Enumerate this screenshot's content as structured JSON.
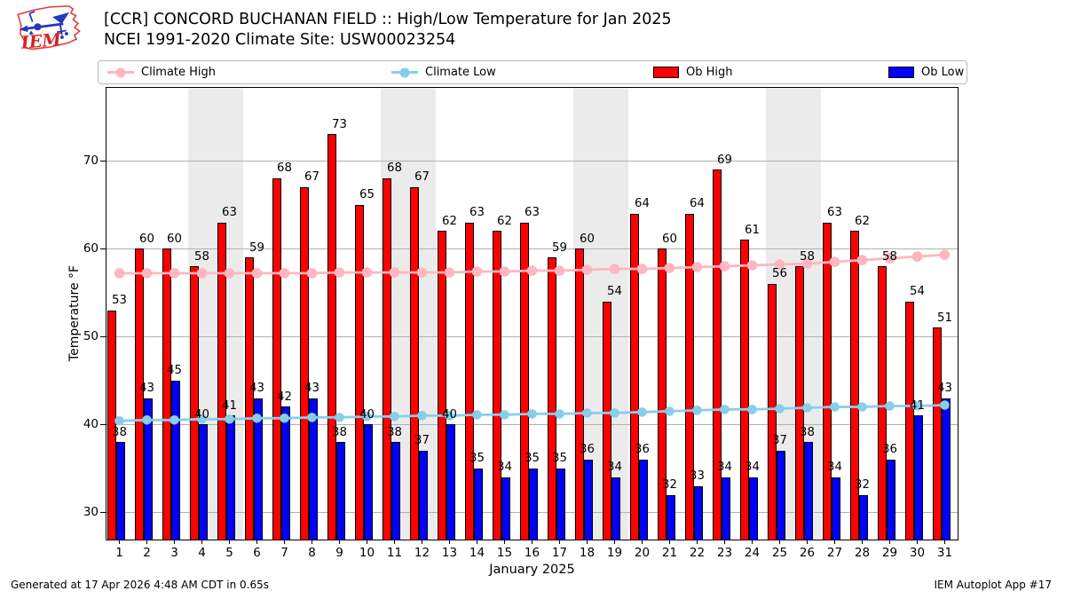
{
  "header": {
    "title": "[CCR] CONCORD BUCHANAN FIELD :: High/Low Temperature for Jan 2025",
    "subtitle": "NCEI 1991-2020 Climate Site: USW00023254",
    "logo_text": "IEM"
  },
  "legend": [
    {
      "label": "Climate High",
      "type": "line",
      "color": "#ffb6c1"
    },
    {
      "label": "Climate Low",
      "type": "line",
      "color": "#87ceeb"
    },
    {
      "label": "Ob High",
      "type": "rect",
      "color": "#ff0000"
    },
    {
      "label": "Ob Low",
      "type": "rect",
      "color": "#0000ff"
    }
  ],
  "chart_data": {
    "type": "bar",
    "x": [
      1,
      2,
      3,
      4,
      5,
      6,
      7,
      8,
      9,
      10,
      11,
      12,
      13,
      14,
      15,
      16,
      17,
      18,
      19,
      20,
      21,
      22,
      23,
      24,
      25,
      26,
      27,
      28,
      29,
      30,
      31
    ],
    "series": [
      {
        "name": "Ob High",
        "type": "bar",
        "color": "#ff0000",
        "values": [
          53,
          60,
          60,
          58,
          63,
          59,
          68,
          67,
          73,
          65,
          68,
          67,
          62,
          63,
          62,
          63,
          59,
          60,
          54,
          64,
          60,
          64,
          69,
          61,
          56,
          58,
          63,
          62,
          58,
          54,
          51
        ]
      },
      {
        "name": "Ob Low",
        "type": "bar",
        "color": "#0000ff",
        "values": [
          38,
          43,
          45,
          40,
          41,
          43,
          42,
          43,
          38,
          40,
          38,
          37,
          40,
          35,
          34,
          35,
          35,
          36,
          34,
          36,
          32,
          33,
          34,
          34,
          37,
          38,
          34,
          32,
          36,
          41,
          43
        ]
      },
      {
        "name": "Climate High",
        "type": "line",
        "color": "#ffb6c1",
        "values": [
          57.2,
          57.2,
          57.2,
          57.2,
          57.2,
          57.2,
          57.2,
          57.2,
          57.3,
          57.3,
          57.3,
          57.3,
          57.3,
          57.4,
          57.4,
          57.5,
          57.5,
          57.6,
          57.7,
          57.7,
          57.8,
          57.9,
          58.0,
          58.1,
          58.2,
          58.3,
          58.5,
          58.7,
          58.9,
          59.1,
          59.3
        ]
      },
      {
        "name": "Climate Low",
        "type": "line",
        "color": "#87ceeb",
        "values": [
          40.4,
          40.5,
          40.5,
          40.6,
          40.6,
          40.7,
          40.7,
          40.8,
          40.8,
          40.9,
          40.9,
          41.0,
          41.0,
          41.1,
          41.1,
          41.2,
          41.2,
          41.3,
          41.3,
          41.4,
          41.5,
          41.6,
          41.7,
          41.7,
          41.8,
          41.9,
          42.0,
          42.0,
          42.1,
          42.1,
          42.2
        ]
      }
    ],
    "xlabel": "January 2025",
    "ylabel": "Temperature °F",
    "yticks": [
      30,
      40,
      50,
      60,
      70
    ],
    "ylim": [
      26.8,
      78.4
    ],
    "weekend_bands": [
      [
        4,
        5
      ],
      [
        11,
        12
      ],
      [
        18,
        19
      ],
      [
        25,
        26
      ]
    ],
    "grid": true,
    "legend_position": "top"
  },
  "colors": {
    "weekend_band": "#ebebeb",
    "gridline": "#b0b0b0",
    "axis": "#000000",
    "logo_outline": "#e23a3a",
    "logo_vane": "#2239c0",
    "logo_text": "#d52222"
  },
  "footer": {
    "generated": "Generated at 17 Apr 2026 4:48 AM CDT in 0.65s",
    "credit": "IEM Autoplot App #17"
  }
}
